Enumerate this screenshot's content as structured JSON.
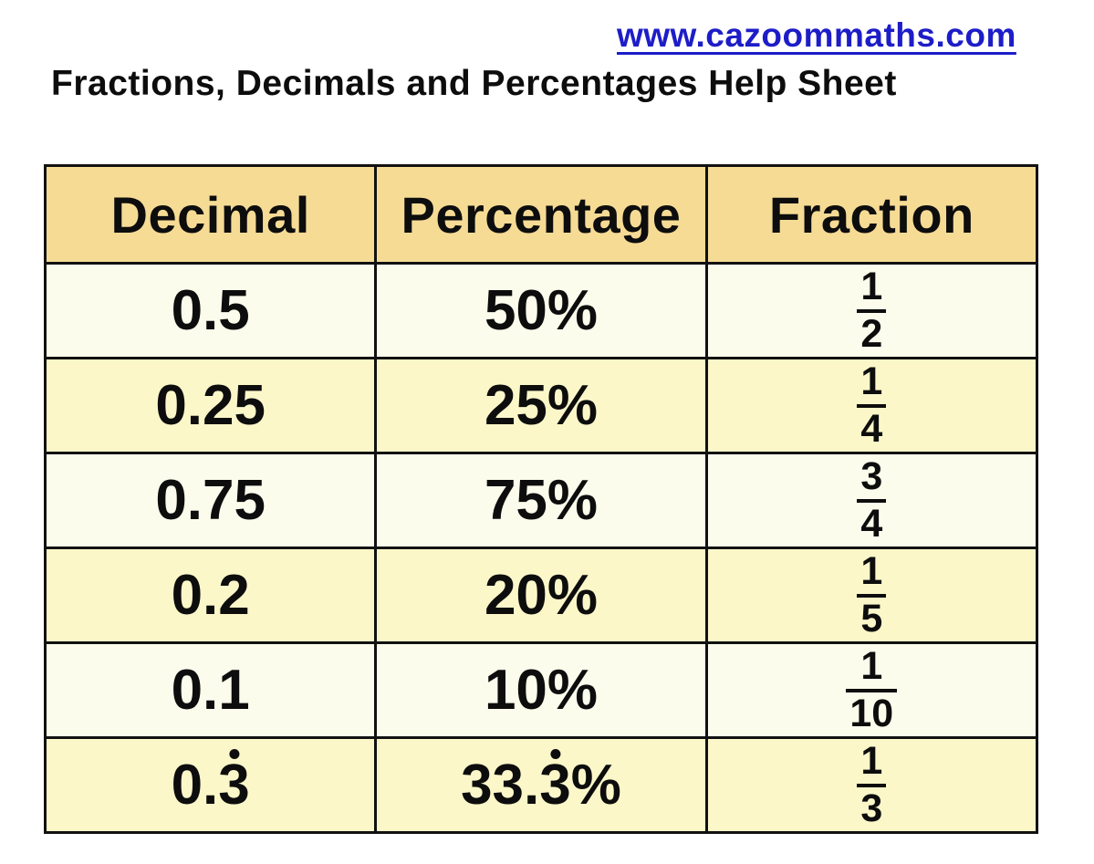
{
  "header": {
    "url": "www.cazoommaths.com",
    "title": "Fractions, Decimals and Percentages Help Sheet"
  },
  "colors": {
    "link_blue": "#1d1dc8",
    "header_bg": "#f6db95",
    "row_light": "#fbfcec",
    "row_yellow": "#fbf7c9",
    "border": "#111111"
  },
  "table": {
    "headers": [
      "Decimal",
      "Percentage",
      "Fraction"
    ],
    "rows": [
      {
        "decimal": {
          "text": "0.5",
          "recurring": "",
          "suffix": ""
        },
        "percentage": {
          "text": "50",
          "recurring": "",
          "suffix": "%"
        },
        "fraction": {
          "numerator": "1",
          "denominator": "2"
        }
      },
      {
        "decimal": {
          "text": "0.25",
          "recurring": "",
          "suffix": ""
        },
        "percentage": {
          "text": "25",
          "recurring": "",
          "suffix": "%"
        },
        "fraction": {
          "numerator": "1",
          "denominator": "4"
        }
      },
      {
        "decimal": {
          "text": "0.75",
          "recurring": "",
          "suffix": ""
        },
        "percentage": {
          "text": "75",
          "recurring": "",
          "suffix": "%"
        },
        "fraction": {
          "numerator": "3",
          "denominator": "4"
        }
      },
      {
        "decimal": {
          "text": "0.2",
          "recurring": "",
          "suffix": ""
        },
        "percentage": {
          "text": "20",
          "recurring": "",
          "suffix": "%"
        },
        "fraction": {
          "numerator": "1",
          "denominator": "5"
        }
      },
      {
        "decimal": {
          "text": "0.1",
          "recurring": "",
          "suffix": ""
        },
        "percentage": {
          "text": "10",
          "recurring": "",
          "suffix": "%"
        },
        "fraction": {
          "numerator": "1",
          "denominator": "10"
        }
      },
      {
        "decimal": {
          "text": "0.",
          "recurring": "3",
          "suffix": ""
        },
        "percentage": {
          "text": "33.",
          "recurring": "3",
          "suffix": "%"
        },
        "fraction": {
          "numerator": "1",
          "denominator": "3"
        }
      }
    ]
  }
}
